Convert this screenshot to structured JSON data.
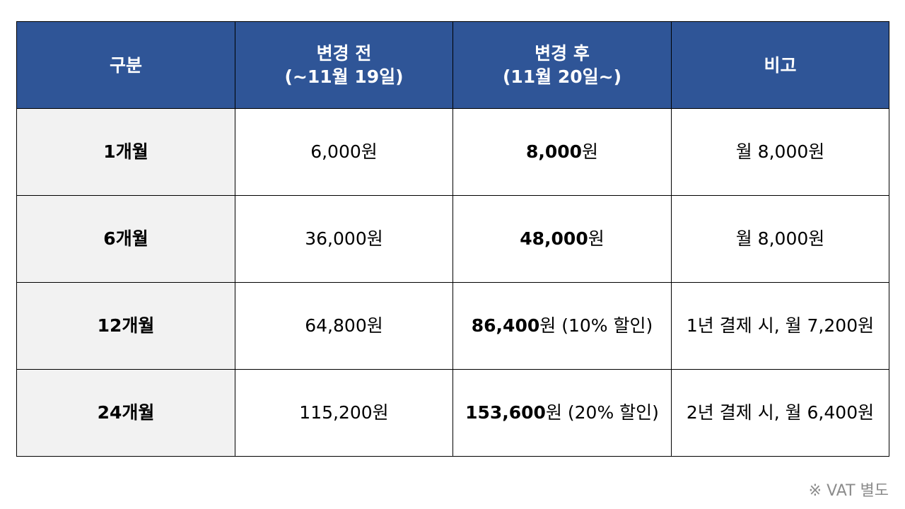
{
  "table": {
    "header": {
      "category": "구분",
      "before_line1": "변경 전",
      "before_line2": "(~11월 19일)",
      "after_line1": "변경 후",
      "after_line2": "(11월 20일~)",
      "remarks": "비고"
    },
    "rows": [
      {
        "label": "1개월",
        "before": "6,000원",
        "after_amount": "8,000",
        "after_suffix": "원",
        "remark": "월 8,000원"
      },
      {
        "label": "6개월",
        "before": "36,000원",
        "after_amount": "48,000",
        "after_suffix": "원",
        "remark": "월 8,000원"
      },
      {
        "label": "12개월",
        "before": "64,800원",
        "after_amount": "86,400",
        "after_suffix": "원 (10% 할인)",
        "remark": "1년 결제 시, 월 7,200원"
      },
      {
        "label": "24개월",
        "before": "115,200원",
        "after_amount": "153,600",
        "after_suffix": "원 (20% 할인)",
        "remark": "2년 결제 시, 월 6,400원"
      }
    ]
  },
  "footnote": "※ VAT 별도",
  "colors": {
    "header_bg": "#2f5597",
    "label_bg": "#f2f2f2",
    "footnote": "#8c8c8c"
  }
}
